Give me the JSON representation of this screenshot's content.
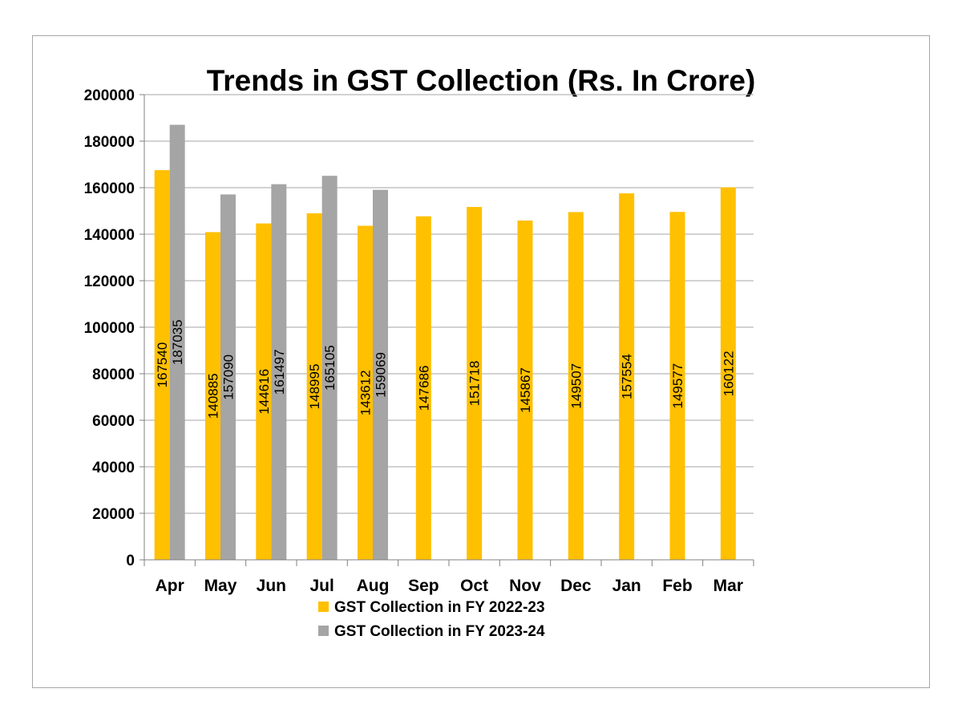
{
  "chart_data": {
    "type": "bar",
    "title": "Trends in GST Collection (Rs. In Crore)",
    "xlabel": "",
    "ylabel": "",
    "ylim": [
      0,
      200000
    ],
    "yticks": [
      "0",
      "20000",
      "40000",
      "60000",
      "80000",
      "100000",
      "120000",
      "140000",
      "160000",
      "180000",
      "200000"
    ],
    "grid": true,
    "legend_position": "bottom",
    "categories": [
      "Apr",
      "May",
      "Jun",
      "Jul",
      "Aug",
      "Sep",
      "Oct",
      "Nov",
      "Dec",
      "Jan",
      "Feb",
      "Mar"
    ],
    "series": [
      {
        "name": "GST Collection in FY 2022-23",
        "color": "#ffc000",
        "values": [
          167540,
          140885,
          144616,
          148995,
          143612,
          147686,
          151718,
          145867,
          149507,
          157554,
          149577,
          160122
        ],
        "labels": [
          "167540",
          "140885",
          "144616",
          "148995",
          "143612",
          "147686",
          "151718",
          "145867",
          "149507",
          "157554",
          "149577",
          "160122"
        ]
      },
      {
        "name": "GST Collection in FY 2023-24",
        "color": "#a5a5a5",
        "values": [
          187035,
          157090,
          161497,
          165105,
          159069,
          null,
          null,
          null,
          null,
          null,
          null,
          null
        ],
        "labels": [
          "187035",
          "157090",
          "161497",
          "165105",
          "159069",
          "",
          "",
          "",
          "",
          "",
          "",
          ""
        ]
      }
    ]
  }
}
